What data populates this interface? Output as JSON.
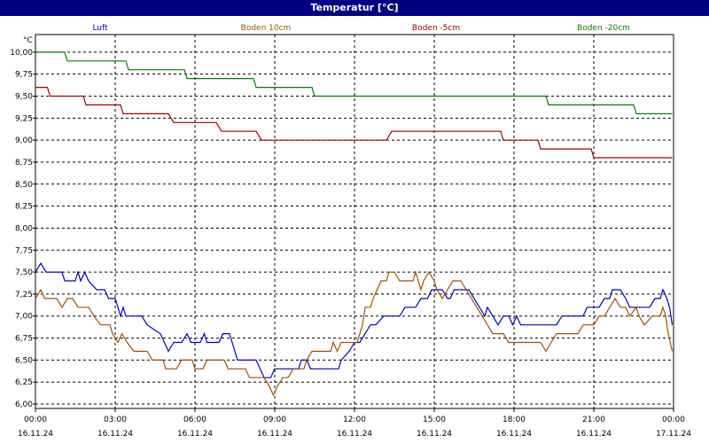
{
  "window": {
    "title": "Temperatur [°C]"
  },
  "chart_data": {
    "type": "line",
    "title": "Temperatur [°C]",
    "ylabel": "°C",
    "ylim": [
      5.95,
      10.2
    ],
    "yticks": [
      "10,00",
      "9,75",
      "9,50",
      "9,25",
      "9,00",
      "8,75",
      "8,50",
      "8,25",
      "8,00",
      "7,75",
      "7,50",
      "7,25",
      "7,00",
      "6,75",
      "6,50",
      "6,25",
      "6,00"
    ],
    "ytick_values": [
      10.0,
      9.75,
      9.5,
      9.25,
      9.0,
      8.75,
      8.5,
      8.25,
      8.0,
      7.75,
      7.5,
      7.25,
      7.0,
      6.75,
      6.5,
      6.25,
      6.0
    ],
    "x_range_hours": [
      0,
      24
    ],
    "xticks": [
      {
        "hour": 0,
        "time": "00:00",
        "date": "16.11.24"
      },
      {
        "hour": 3,
        "time": "03:00",
        "date": "16.11.24"
      },
      {
        "hour": 6,
        "time": "06:00",
        "date": "16.11.24"
      },
      {
        "hour": 9,
        "time": "09:00",
        "date": "16.11.24"
      },
      {
        "hour": 12,
        "time": "12:00",
        "date": "16.11.24"
      },
      {
        "hour": 15,
        "time": "15:00",
        "date": "16.11.24"
      },
      {
        "hour": 18,
        "time": "18:00",
        "date": "16.11.24"
      },
      {
        "hour": 21,
        "time": "21:00",
        "date": "16.11.24"
      },
      {
        "hour": 24,
        "time": "00:00",
        "date": "17.11.24"
      }
    ],
    "grid": true,
    "legend_position": "top",
    "series": [
      {
        "name": "Luft",
        "color": "#0000c0",
        "points": [
          [
            0,
            7.5
          ],
          [
            0.2,
            7.6
          ],
          [
            0.4,
            7.5
          ],
          [
            1.0,
            7.5
          ],
          [
            1.1,
            7.4
          ],
          [
            1.5,
            7.4
          ],
          [
            1.6,
            7.5
          ],
          [
            1.7,
            7.4
          ],
          [
            1.85,
            7.5
          ],
          [
            2.0,
            7.4
          ],
          [
            2.3,
            7.3
          ],
          [
            2.6,
            7.3
          ],
          [
            2.75,
            7.2
          ],
          [
            3.0,
            7.2
          ],
          [
            3.1,
            7.1
          ],
          [
            3.2,
            7.0
          ],
          [
            3.3,
            7.1
          ],
          [
            3.4,
            7.0
          ],
          [
            4.0,
            7.0
          ],
          [
            4.2,
            6.9
          ],
          [
            4.7,
            6.8
          ],
          [
            4.85,
            6.7
          ],
          [
            5.0,
            6.6
          ],
          [
            5.2,
            6.7
          ],
          [
            5.5,
            6.7
          ],
          [
            5.7,
            6.8
          ],
          [
            5.85,
            6.7
          ],
          [
            6.2,
            6.7
          ],
          [
            6.35,
            6.8
          ],
          [
            6.45,
            6.7
          ],
          [
            6.9,
            6.7
          ],
          [
            7.05,
            6.8
          ],
          [
            7.3,
            6.8
          ],
          [
            7.4,
            6.7
          ],
          [
            7.5,
            6.6
          ],
          [
            7.6,
            6.5
          ],
          [
            8.3,
            6.5
          ],
          [
            8.45,
            6.4
          ],
          [
            8.6,
            6.3
          ],
          [
            8.85,
            6.3
          ],
          [
            9.0,
            6.4
          ],
          [
            9.9,
            6.4
          ],
          [
            10.0,
            6.5
          ],
          [
            10.2,
            6.5
          ],
          [
            10.35,
            6.4
          ],
          [
            11.4,
            6.4
          ],
          [
            11.5,
            6.5
          ],
          [
            11.8,
            6.6
          ],
          [
            12.0,
            6.7
          ],
          [
            12.2,
            6.7
          ],
          [
            12.4,
            6.8
          ],
          [
            12.6,
            6.9
          ],
          [
            12.8,
            6.9
          ],
          [
            13.1,
            7.0
          ],
          [
            13.5,
            7.0
          ],
          [
            13.7,
            7.0
          ],
          [
            13.9,
            7.1
          ],
          [
            14.3,
            7.1
          ],
          [
            14.5,
            7.2
          ],
          [
            14.75,
            7.2
          ],
          [
            14.9,
            7.3
          ],
          [
            15.1,
            7.3
          ],
          [
            15.3,
            7.3
          ],
          [
            15.5,
            7.2
          ],
          [
            15.6,
            7.2
          ],
          [
            15.75,
            7.3
          ],
          [
            16.3,
            7.3
          ],
          [
            16.5,
            7.2
          ],
          [
            16.7,
            7.1
          ],
          [
            16.9,
            7.0
          ],
          [
            17.0,
            7.1
          ],
          [
            17.2,
            7.0
          ],
          [
            17.4,
            6.9
          ],
          [
            17.6,
            7.0
          ],
          [
            17.8,
            7.0
          ],
          [
            17.95,
            6.9
          ],
          [
            18.1,
            7.0
          ],
          [
            18.25,
            6.9
          ],
          [
            19.6,
            6.9
          ],
          [
            19.8,
            7.0
          ],
          [
            20.6,
            7.0
          ],
          [
            20.75,
            7.1
          ],
          [
            21.2,
            7.1
          ],
          [
            21.4,
            7.2
          ],
          [
            21.6,
            7.2
          ],
          [
            21.7,
            7.3
          ],
          [
            22.0,
            7.3
          ],
          [
            22.2,
            7.2
          ],
          [
            22.35,
            7.1
          ],
          [
            22.6,
            7.1
          ],
          [
            23.1,
            7.1
          ],
          [
            23.3,
            7.2
          ],
          [
            23.5,
            7.2
          ],
          [
            23.6,
            7.3
          ],
          [
            23.75,
            7.2
          ],
          [
            23.85,
            7.1
          ],
          [
            23.95,
            6.9
          ]
        ]
      },
      {
        "name": "Boden 10cm",
        "color": "#a05000",
        "points": [
          [
            0,
            7.2
          ],
          [
            0.2,
            7.3
          ],
          [
            0.35,
            7.2
          ],
          [
            0.8,
            7.2
          ],
          [
            1.0,
            7.1
          ],
          [
            1.2,
            7.2
          ],
          [
            1.4,
            7.2
          ],
          [
            1.6,
            7.1
          ],
          [
            2.0,
            7.1
          ],
          [
            2.2,
            7.0
          ],
          [
            2.45,
            6.9
          ],
          [
            2.8,
            6.9
          ],
          [
            2.9,
            6.8
          ],
          [
            3.1,
            6.7
          ],
          [
            3.25,
            6.8
          ],
          [
            3.45,
            6.7
          ],
          [
            3.7,
            6.6
          ],
          [
            4.2,
            6.6
          ],
          [
            4.4,
            6.5
          ],
          [
            4.8,
            6.5
          ],
          [
            4.9,
            6.4
          ],
          [
            5.3,
            6.4
          ],
          [
            5.5,
            6.5
          ],
          [
            5.9,
            6.5
          ],
          [
            6.0,
            6.4
          ],
          [
            6.3,
            6.4
          ],
          [
            6.45,
            6.5
          ],
          [
            7.1,
            6.5
          ],
          [
            7.25,
            6.4
          ],
          [
            7.9,
            6.4
          ],
          [
            8.05,
            6.3
          ],
          [
            8.6,
            6.3
          ],
          [
            8.8,
            6.2
          ],
          [
            8.95,
            6.1
          ],
          [
            9.1,
            6.2
          ],
          [
            9.3,
            6.3
          ],
          [
            9.5,
            6.3
          ],
          [
            9.7,
            6.4
          ],
          [
            10.1,
            6.4
          ],
          [
            10.2,
            6.5
          ],
          [
            10.4,
            6.6
          ],
          [
            11.1,
            6.6
          ],
          [
            11.2,
            6.7
          ],
          [
            11.35,
            6.6
          ],
          [
            11.5,
            6.7
          ],
          [
            12.1,
            6.7
          ],
          [
            12.2,
            6.8
          ],
          [
            12.3,
            6.9
          ],
          [
            12.4,
            7.1
          ],
          [
            12.6,
            7.1
          ],
          [
            12.7,
            7.2
          ],
          [
            12.85,
            7.3
          ],
          [
            13.0,
            7.4
          ],
          [
            13.2,
            7.4
          ],
          [
            13.3,
            7.5
          ],
          [
            13.5,
            7.5
          ],
          [
            13.7,
            7.4
          ],
          [
            14.2,
            7.4
          ],
          [
            14.3,
            7.5
          ],
          [
            14.4,
            7.4
          ],
          [
            14.5,
            7.3
          ],
          [
            14.6,
            7.4
          ],
          [
            14.8,
            7.5
          ],
          [
            15.0,
            7.4
          ],
          [
            15.1,
            7.3
          ],
          [
            15.3,
            7.2
          ],
          [
            15.5,
            7.3
          ],
          [
            15.7,
            7.4
          ],
          [
            16.0,
            7.4
          ],
          [
            16.2,
            7.3
          ],
          [
            16.4,
            7.2
          ],
          [
            16.6,
            7.1
          ],
          [
            16.8,
            7.0
          ],
          [
            17.0,
            6.9
          ],
          [
            17.2,
            6.8
          ],
          [
            17.6,
            6.8
          ],
          [
            17.8,
            6.7
          ],
          [
            19.0,
            6.7
          ],
          [
            19.2,
            6.6
          ],
          [
            19.4,
            6.7
          ],
          [
            19.6,
            6.8
          ],
          [
            20.4,
            6.8
          ],
          [
            20.6,
            6.9
          ],
          [
            21.0,
            6.9
          ],
          [
            21.2,
            7.0
          ],
          [
            21.4,
            7.0
          ],
          [
            21.6,
            7.1
          ],
          [
            21.8,
            7.2
          ],
          [
            22.0,
            7.1
          ],
          [
            22.2,
            7.1
          ],
          [
            22.35,
            7.0
          ],
          [
            22.6,
            7.1
          ],
          [
            22.7,
            7.0
          ],
          [
            22.9,
            6.9
          ],
          [
            23.2,
            7.0
          ],
          [
            23.5,
            7.0
          ],
          [
            23.6,
            7.1
          ],
          [
            23.7,
            7.0
          ],
          [
            23.8,
            6.8
          ],
          [
            23.95,
            6.6
          ]
        ]
      },
      {
        "name": "Boden -5cm",
        "color": "#a00000",
        "points": [
          [
            0,
            9.6
          ],
          [
            0.45,
            9.6
          ],
          [
            0.55,
            9.5
          ],
          [
            1.8,
            9.5
          ],
          [
            1.9,
            9.4
          ],
          [
            3.2,
            9.4
          ],
          [
            3.3,
            9.3
          ],
          [
            5.0,
            9.3
          ],
          [
            5.2,
            9.2
          ],
          [
            6.8,
            9.2
          ],
          [
            7.0,
            9.1
          ],
          [
            8.3,
            9.1
          ],
          [
            8.5,
            9.0
          ],
          [
            13.2,
            9.0
          ],
          [
            13.4,
            9.1
          ],
          [
            17.5,
            9.1
          ],
          [
            17.6,
            9.0
          ],
          [
            18.9,
            9.0
          ],
          [
            19.0,
            8.9
          ],
          [
            20.9,
            8.9
          ],
          [
            21.0,
            8.8
          ],
          [
            23.95,
            8.8
          ]
        ]
      },
      {
        "name": "Boden -20cm",
        "color": "#008000",
        "points": [
          [
            0,
            10.0
          ],
          [
            1.1,
            10.0
          ],
          [
            1.2,
            9.9
          ],
          [
            3.4,
            9.9
          ],
          [
            3.5,
            9.8
          ],
          [
            5.6,
            9.8
          ],
          [
            5.7,
            9.7
          ],
          [
            8.2,
            9.7
          ],
          [
            8.3,
            9.6
          ],
          [
            10.4,
            9.6
          ],
          [
            10.5,
            9.5
          ],
          [
            19.2,
            9.5
          ],
          [
            19.3,
            9.4
          ],
          [
            22.5,
            9.4
          ],
          [
            22.6,
            9.3
          ],
          [
            23.95,
            9.3
          ]
        ]
      }
    ]
  }
}
